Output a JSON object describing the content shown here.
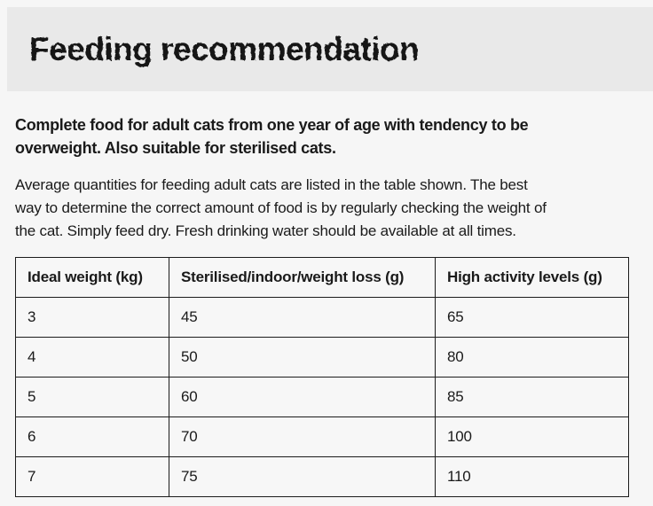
{
  "page": {
    "title": "Feeding recommendation",
    "intro_bold": "Complete food for adult cats from one year of age with tendency to be\noverweight. Also suitable for sterilised cats.",
    "body_text": "Average quantities for feeding adult cats are listed in the table shown. The best\nway to determine the correct amount of food is by regularly checking the weight of\nthe cat. Simply feed dry. Fresh drinking water should be available at all times."
  },
  "table": {
    "headers": [
      "Ideal weight (kg)",
      "Sterilised/indoor/weight loss (g)",
      "High activity levels (g)"
    ],
    "rows": [
      [
        "3",
        "45",
        "65"
      ],
      [
        "4",
        "50",
        "80"
      ],
      [
        "5",
        "60",
        "85"
      ],
      [
        "6",
        "70",
        "100"
      ],
      [
        "7",
        "75",
        "110"
      ]
    ]
  },
  "colors": {
    "page_background": "#f6f6f6",
    "title_band_background": "#e9e9e9",
    "text": "#1a1a1a",
    "table_border": "#1c1c1c"
  }
}
